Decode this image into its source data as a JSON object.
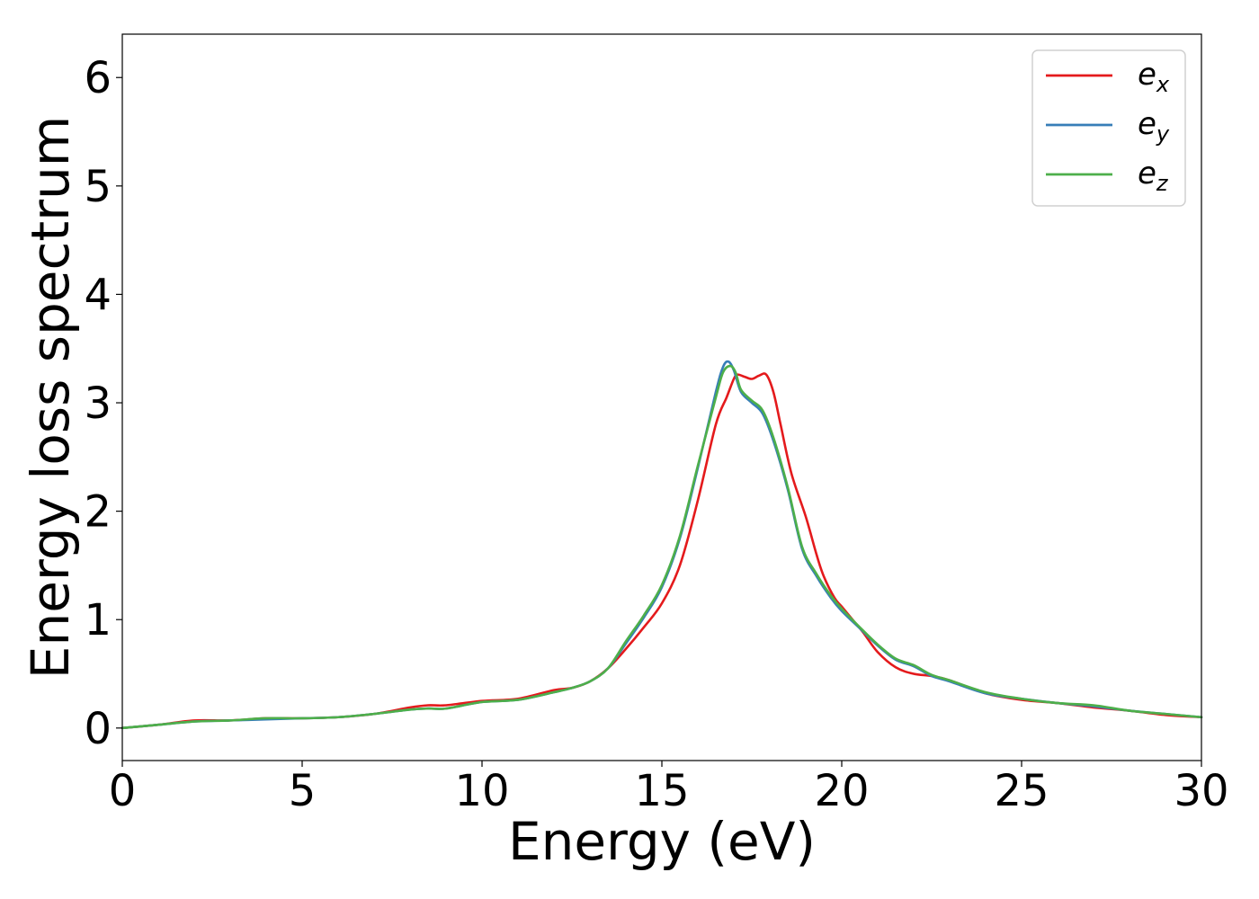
{
  "chart_data": {
    "type": "line",
    "title": "",
    "xlabel": "Energy (eV)",
    "ylabel": "Energy loss spectrum",
    "xlim": [
      0,
      30
    ],
    "ylim": [
      -0.3,
      6.4
    ],
    "xticks": [
      0,
      5,
      10,
      15,
      20,
      25,
      30
    ],
    "yticks": [
      0,
      1,
      2,
      3,
      4,
      5,
      6
    ],
    "grid": false,
    "legend_position": "top-right",
    "series": [
      {
        "name": "e_x",
        "legend_base": "e",
        "legend_sub": "x",
        "color": "#e41a1c",
        "x": [
          0,
          1,
          2,
          3,
          4,
          5,
          6,
          7,
          8,
          8.5,
          9,
          10,
          11,
          12,
          12.5,
          13,
          13.5,
          14,
          14.5,
          15,
          15.5,
          16,
          16.5,
          16.8,
          17,
          17.1,
          17.3,
          17.5,
          17.7,
          17.9,
          18.1,
          18.3,
          18.6,
          19,
          19.3,
          19.5,
          19.8,
          20,
          20.3,
          20.6,
          21,
          21.5,
          22,
          22.5,
          23,
          24,
          25,
          26,
          27,
          28,
          29,
          30
        ],
        "y": [
          0.0,
          0.03,
          0.07,
          0.07,
          0.09,
          0.09,
          0.1,
          0.13,
          0.19,
          0.21,
          0.21,
          0.25,
          0.27,
          0.35,
          0.37,
          0.43,
          0.55,
          0.73,
          0.93,
          1.15,
          1.5,
          2.1,
          2.8,
          3.05,
          3.22,
          3.26,
          3.24,
          3.22,
          3.25,
          3.26,
          3.1,
          2.8,
          2.35,
          1.95,
          1.6,
          1.4,
          1.2,
          1.12,
          1.0,
          0.88,
          0.7,
          0.56,
          0.5,
          0.48,
          0.44,
          0.32,
          0.26,
          0.23,
          0.19,
          0.16,
          0.12,
          0.1
        ]
      },
      {
        "name": "e_y",
        "legend_base": "e",
        "legend_sub": "y",
        "color": "#377eb8",
        "x": [
          0,
          1,
          2,
          3,
          4,
          5,
          6,
          7,
          8,
          8.5,
          9,
          10,
          11,
          12,
          12.5,
          13,
          13.5,
          14,
          14.5,
          15,
          15.5,
          16,
          16.5,
          16.7,
          16.85,
          17,
          17.2,
          17.5,
          17.8,
          18.1,
          18.5,
          18.9,
          19.3,
          19.7,
          20,
          20.5,
          21,
          21.5,
          22,
          22.5,
          23,
          24,
          25,
          26,
          27,
          28,
          29,
          30
        ],
        "y": [
          0.0,
          0.03,
          0.06,
          0.07,
          0.08,
          0.09,
          0.1,
          0.13,
          0.17,
          0.18,
          0.18,
          0.24,
          0.26,
          0.33,
          0.37,
          0.43,
          0.55,
          0.78,
          1.02,
          1.3,
          1.75,
          2.4,
          3.1,
          3.33,
          3.38,
          3.3,
          3.1,
          3.0,
          2.9,
          2.65,
          2.2,
          1.65,
          1.4,
          1.2,
          1.08,
          0.92,
          0.76,
          0.63,
          0.57,
          0.48,
          0.43,
          0.32,
          0.27,
          0.23,
          0.2,
          0.16,
          0.13,
          0.1
        ]
      },
      {
        "name": "e_z",
        "legend_base": "e",
        "legend_sub": "z",
        "color": "#4daf4a",
        "x": [
          0,
          1,
          2,
          3,
          4,
          5,
          6,
          7,
          8,
          8.5,
          9,
          10,
          11,
          12,
          12.5,
          13,
          13.5,
          14,
          14.5,
          15,
          15.5,
          16,
          16.5,
          16.7,
          16.9,
          17.05,
          17.2,
          17.5,
          17.8,
          18.1,
          18.5,
          18.9,
          19.3,
          19.7,
          20,
          20.5,
          21,
          21.5,
          22,
          22.5,
          23,
          24,
          25,
          26,
          27,
          28,
          29,
          30
        ],
        "y": [
          0.0,
          0.03,
          0.06,
          0.07,
          0.09,
          0.09,
          0.1,
          0.13,
          0.17,
          0.18,
          0.18,
          0.24,
          0.26,
          0.33,
          0.37,
          0.43,
          0.55,
          0.8,
          1.04,
          1.32,
          1.77,
          2.42,
          3.05,
          3.28,
          3.34,
          3.28,
          3.12,
          3.02,
          2.93,
          2.68,
          2.22,
          1.67,
          1.42,
          1.22,
          1.1,
          0.93,
          0.77,
          0.64,
          0.58,
          0.49,
          0.44,
          0.33,
          0.27,
          0.23,
          0.21,
          0.16,
          0.13,
          0.1
        ]
      }
    ]
  }
}
